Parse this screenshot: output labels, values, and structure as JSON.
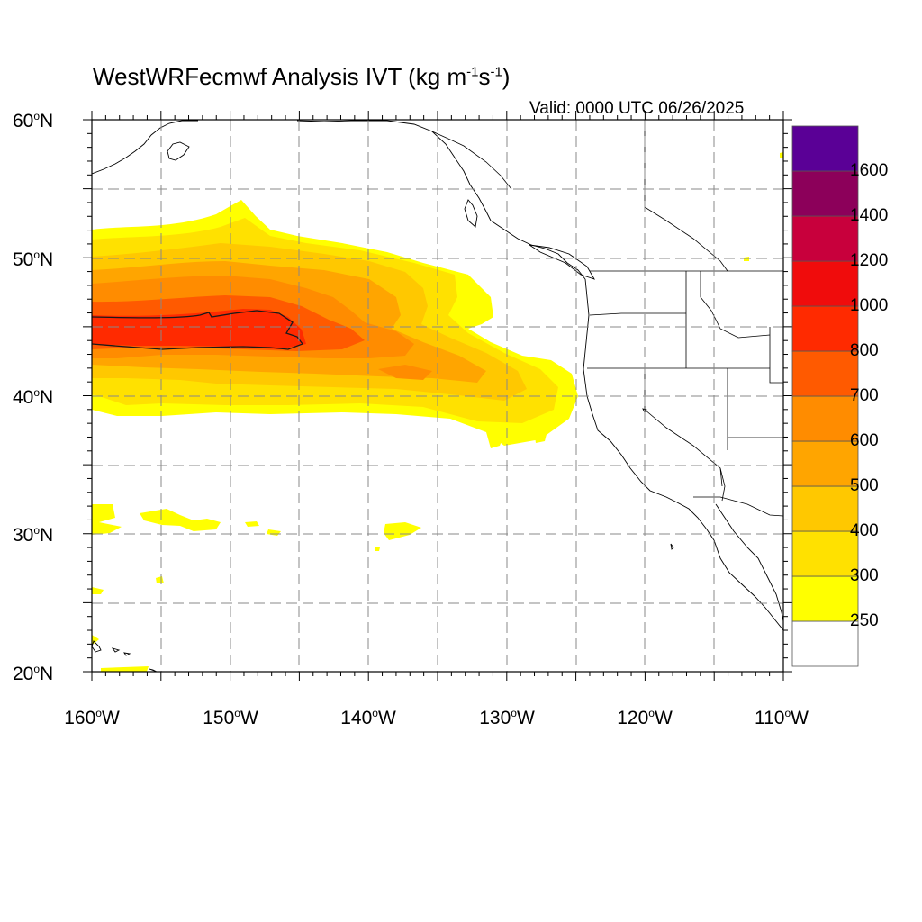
{
  "header": {
    "title": "WestWRFecmwf Analysis IVT (kg m",
    "title_exp1": "-1",
    "title_mid": "s",
    "title_exp2": "-1",
    "title_end": ")",
    "valid": "Valid: 0000 UTC 06/26/2025"
  },
  "map": {
    "projection": "cylindrical equidistant",
    "lon_range": [
      -160,
      -110
    ],
    "lat_range": [
      20,
      60
    ],
    "gridlines": "dashed",
    "lat_labels": [
      "60",
      "50",
      "40",
      "30",
      "20"
    ],
    "lat_suffix": "N",
    "lon_labels": [
      "160",
      "150",
      "140",
      "130",
      "120",
      "110"
    ],
    "lon_suffix": "W",
    "deg_mark": "o"
  },
  "colorbar": {
    "labels": [
      "1600",
      "1400",
      "1200",
      "1000",
      "800",
      "700",
      "600",
      "500",
      "400",
      "300",
      "250"
    ],
    "colors": [
      "#ffffff",
      "#ffff00",
      "#ffe100",
      "#ffc800",
      "#ffa500",
      "#ff8c00",
      "#ff5a00",
      "#ff2a00",
      "#f00c0c",
      "#c8003c",
      "#8c005a",
      "#5a0096"
    ]
  },
  "colors": {
    "ivt_250": "#ffff00",
    "ivt_300": "#ffe100",
    "ivt_400": "#ffc800",
    "ivt_500": "#ffa500",
    "ivt_600": "#ff8c00",
    "ivt_700": "#ff5a00",
    "ivt_800": "#ff2a00"
  }
}
